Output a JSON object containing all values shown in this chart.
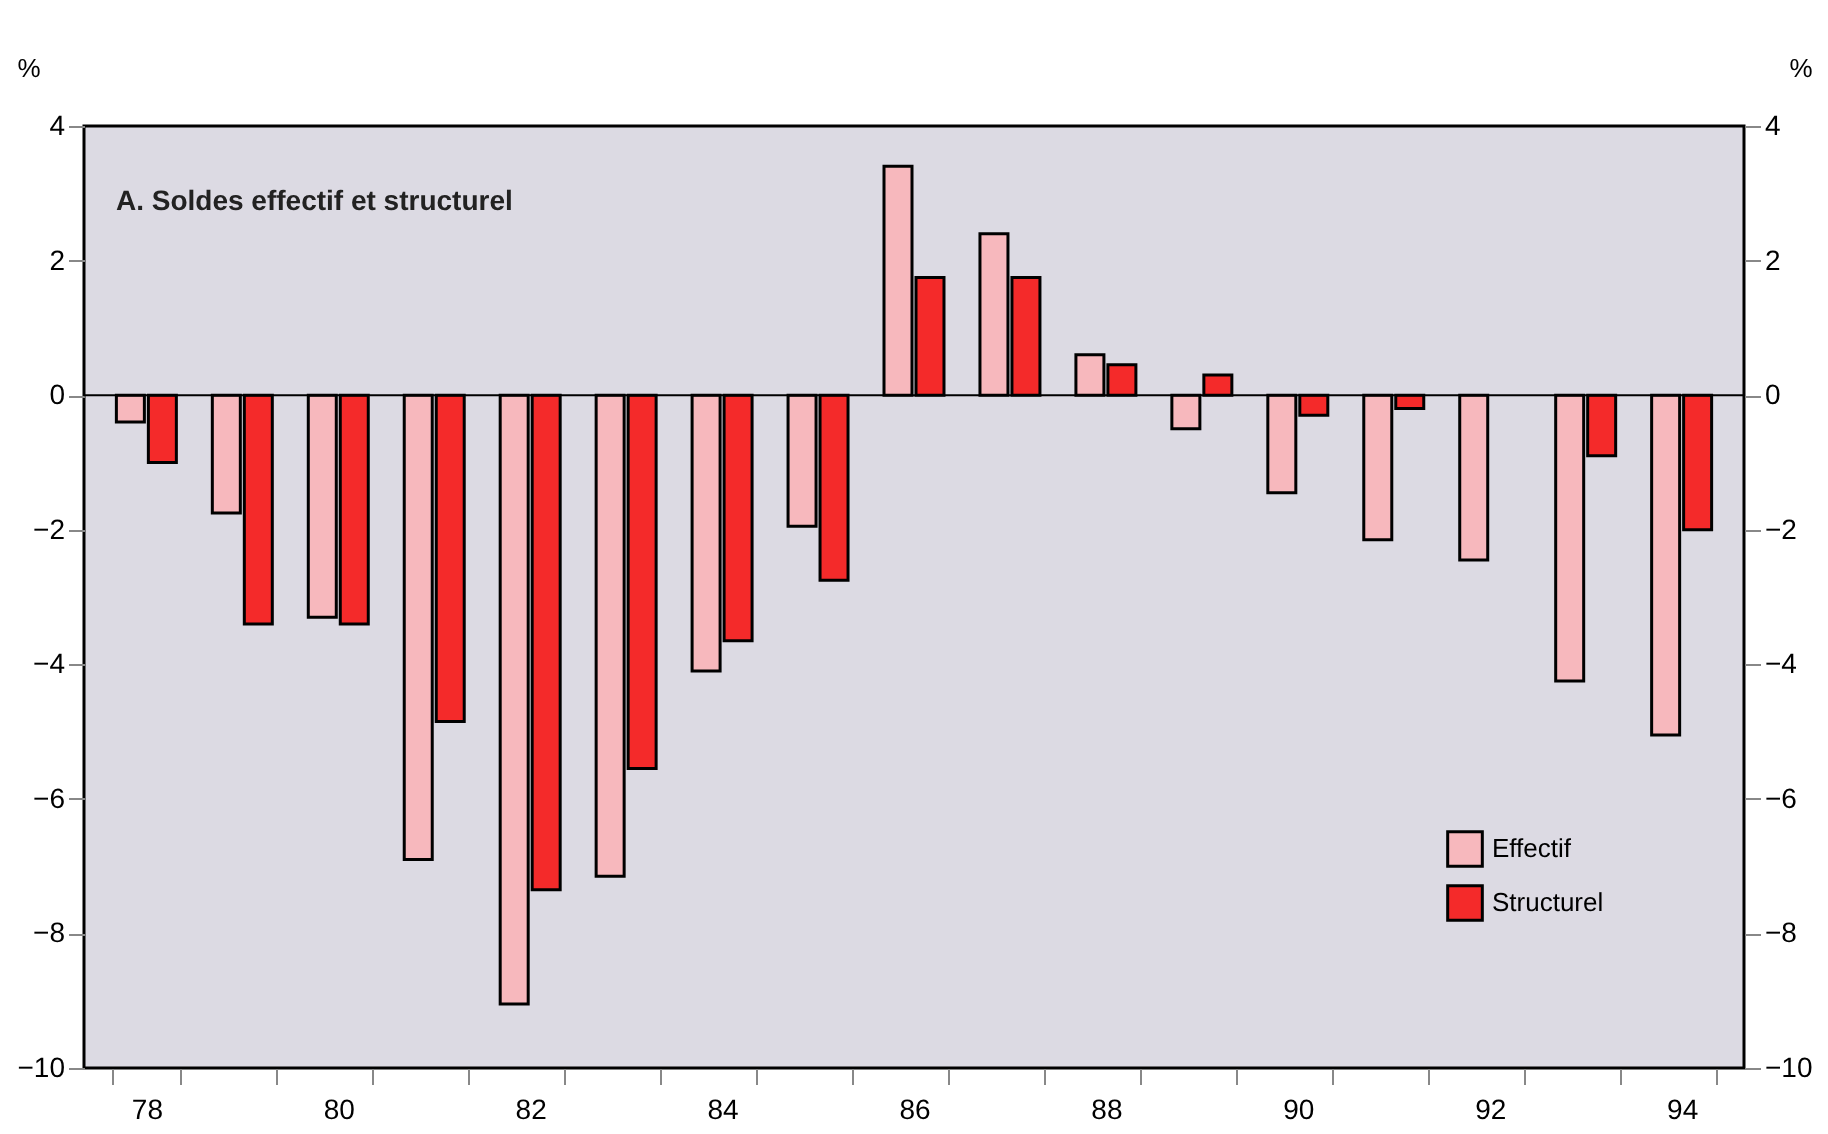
{
  "chart_data": {
    "type": "bar",
    "title": "A.  Soldes effectif et structurel",
    "ylabel": "%",
    "y2label": "%",
    "categories": [
      "78",
      null,
      "80",
      null,
      "82",
      null,
      "84",
      null,
      "86",
      null,
      "88",
      null,
      "90",
      null,
      "92",
      null,
      "94"
    ],
    "series": [
      {
        "name": "Effectif",
        "color": "#f7b8bd",
        "values": [
          -0.4,
          -1.75,
          -3.3,
          -6.9,
          -9.05,
          -7.15,
          -4.1,
          -1.95,
          3.4,
          2.4,
          0.6,
          -0.5,
          -1.45,
          -2.15,
          -2.45,
          -4.25,
          -5.05
        ]
      },
      {
        "name": "Structurel",
        "color": "#f42a2a",
        "values": [
          -1.0,
          -3.4,
          -3.4,
          -4.85,
          -7.35,
          -5.55,
          -3.65,
          -2.75,
          1.75,
          1.75,
          0.45,
          0.3,
          -0.3,
          -0.2,
          null,
          -0.9,
          -2.0
        ]
      }
    ],
    "ylim": [
      -10,
      4
    ],
    "yticks": [
      -10,
      -8,
      -6,
      -4,
      -2,
      0,
      2,
      4
    ],
    "y2lim": [
      -10,
      4
    ],
    "y2ticks": [
      -10,
      -8,
      -6,
      -4,
      -2,
      0,
      2,
      4
    ],
    "ref_lines": [
      {
        "axis": "y",
        "value": 0,
        "color": "#000000"
      }
    ],
    "grid": false,
    "legend": "bottom right"
  }
}
